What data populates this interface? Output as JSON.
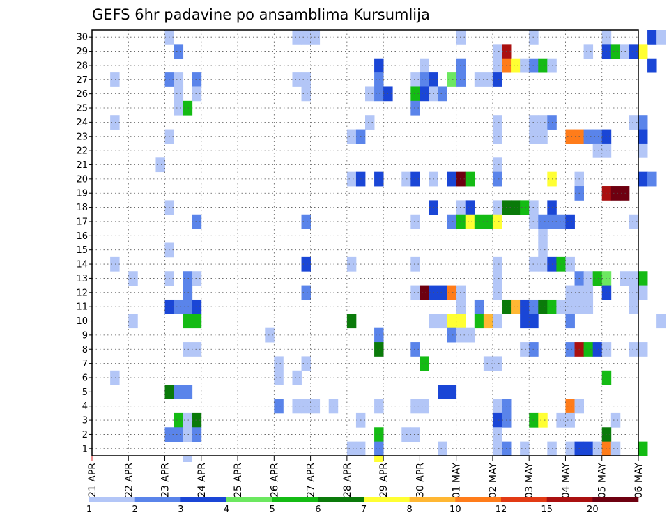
{
  "chart_data": {
    "type": "heatmap",
    "title": "GEFS 6hr padavine po ansamblima Kursumlija",
    "y_members": [
      1,
      2,
      3,
      4,
      5,
      6,
      7,
      8,
      9,
      10,
      11,
      12,
      13,
      14,
      15,
      16,
      17,
      18,
      19,
      20,
      21,
      22,
      23,
      24,
      25,
      26,
      27,
      28,
      29,
      30
    ],
    "x_days": [
      "21 APR",
      "22 APR",
      "23 APR",
      "24 APR",
      "25 APR",
      "26 APR",
      "27 APR",
      "28 APR",
      "29 APR",
      "30 APR",
      "01 MAY",
      "02 MAY",
      "03 MAY",
      "04 MAY",
      "05 MAY",
      "06 MAY"
    ],
    "steps_per_day": 4,
    "grid": true,
    "legend": {
      "position": "bottom",
      "labels": [
        "1",
        "2",
        "3",
        "4",
        "5",
        "6",
        "7",
        "8",
        "10",
        "12",
        "15",
        "20"
      ],
      "colors": [
        "#b3c6f7",
        "#5a84ea",
        "#1a46d6",
        "#6ce860",
        "#14bb14",
        "#0a7a0a",
        "#ffff33",
        "#ffb733",
        "#ff7c1a",
        "#e23a14",
        "#aa1010",
        "#6e0010"
      ]
    },
    "cells": [
      [
        30,
        2,
        1
      ],
      [
        30,
        5.5,
        1
      ],
      [
        30,
        5.75,
        1
      ],
      [
        30,
        6,
        1
      ],
      [
        30,
        10,
        1
      ],
      [
        30,
        12,
        1
      ],
      [
        30,
        14,
        1
      ],
      [
        30,
        15.25,
        3
      ],
      [
        30,
        15.5,
        1
      ],
      [
        29,
        2.25,
        2
      ],
      [
        29,
        11,
        1
      ],
      [
        29,
        11.25,
        15
      ],
      [
        29,
        13.5,
        1
      ],
      [
        29,
        14,
        3
      ],
      [
        29,
        14.25,
        5
      ],
      [
        29,
        14.5,
        1
      ],
      [
        29,
        14.75,
        3
      ],
      [
        29,
        15,
        7
      ],
      [
        28,
        7.75,
        3
      ],
      [
        28,
        9,
        1
      ],
      [
        28,
        10,
        2
      ],
      [
        28,
        11,
        1
      ],
      [
        28,
        11.25,
        10
      ],
      [
        28,
        11.5,
        7
      ],
      [
        28,
        11.75,
        1
      ],
      [
        28,
        12,
        2
      ],
      [
        28,
        12.25,
        5
      ],
      [
        28,
        12.5,
        1
      ],
      [
        28,
        15.25,
        3
      ],
      [
        27,
        0.5,
        1
      ],
      [
        27,
        2,
        2
      ],
      [
        27,
        2.25,
        1
      ],
      [
        27,
        2.75,
        2
      ],
      [
        27,
        5.5,
        1
      ],
      [
        27,
        5.75,
        1
      ],
      [
        27,
        7.75,
        2
      ],
      [
        27,
        8.75,
        1
      ],
      [
        27,
        9,
        2
      ],
      [
        27,
        9.25,
        3
      ],
      [
        27,
        9.75,
        4
      ],
      [
        27,
        10,
        2
      ],
      [
        27,
        10.5,
        1
      ],
      [
        27,
        10.75,
        1
      ],
      [
        27,
        11,
        3
      ],
      [
        26,
        2.25,
        1
      ],
      [
        26,
        2.75,
        1
      ],
      [
        26,
        5.75,
        1
      ],
      [
        26,
        7.5,
        1
      ],
      [
        26,
        7.75,
        2
      ],
      [
        26,
        8,
        3
      ],
      [
        26,
        8.75,
        5
      ],
      [
        26,
        9,
        3
      ],
      [
        26,
        9.25,
        1
      ],
      [
        26,
        9.5,
        2
      ],
      [
        25,
        2.25,
        1
      ],
      [
        25,
        2.5,
        5
      ],
      [
        25,
        8.75,
        2
      ],
      [
        24,
        0.5,
        1
      ],
      [
        24,
        7.5,
        1
      ],
      [
        24,
        11,
        1
      ],
      [
        24,
        12,
        1
      ],
      [
        24,
        12.25,
        1
      ],
      [
        24,
        12.5,
        2
      ],
      [
        24,
        14.75,
        1
      ],
      [
        24,
        15,
        2
      ],
      [
        23,
        2,
        1
      ],
      [
        23,
        7,
        1
      ],
      [
        23,
        7.25,
        2
      ],
      [
        23,
        11,
        1
      ],
      [
        23,
        12,
        1
      ],
      [
        23,
        12.25,
        1
      ],
      [
        23,
        13,
        10
      ],
      [
        23,
        13.25,
        10
      ],
      [
        23,
        13.5,
        2
      ],
      [
        23,
        13.75,
        2
      ],
      [
        23,
        14,
        3
      ],
      [
        23,
        15,
        3
      ],
      [
        22,
        13.75,
        1
      ],
      [
        22,
        14,
        1
      ],
      [
        22,
        15,
        1
      ],
      [
        21,
        1.75,
        1
      ],
      [
        21,
        11,
        1
      ],
      [
        20,
        7,
        1
      ],
      [
        20,
        7.25,
        3
      ],
      [
        20,
        7.75,
        3
      ],
      [
        20,
        8.5,
        1
      ],
      [
        20,
        8.75,
        3
      ],
      [
        20,
        9.25,
        1
      ],
      [
        20,
        9.75,
        3
      ],
      [
        20,
        10,
        20
      ],
      [
        20,
        10.25,
        5
      ],
      [
        20,
        11,
        2
      ],
      [
        20,
        12.5,
        7
      ],
      [
        20,
        13.25,
        1
      ],
      [
        20,
        15,
        3
      ],
      [
        20,
        15.25,
        2
      ],
      [
        19,
        13.25,
        2
      ],
      [
        19,
        14,
        15
      ],
      [
        19,
        14.25,
        20
      ],
      [
        19,
        14.5,
        20
      ],
      [
        18,
        2,
        1
      ],
      [
        18,
        9.25,
        3
      ],
      [
        18,
        10,
        1
      ],
      [
        18,
        10.25,
        3
      ],
      [
        18,
        11,
        1
      ],
      [
        18,
        11.25,
        6
      ],
      [
        18,
        11.5,
        6
      ],
      [
        18,
        11.75,
        5
      ],
      [
        18,
        12,
        1
      ],
      [
        18,
        12.5,
        3
      ],
      [
        17,
        2.75,
        2
      ],
      [
        17,
        5.75,
        2
      ],
      [
        17,
        8.75,
        1
      ],
      [
        17,
        9.75,
        2
      ],
      [
        17,
        10,
        5
      ],
      [
        17,
        10.25,
        7
      ],
      [
        17,
        10.5,
        5
      ],
      [
        17,
        10.75,
        5
      ],
      [
        17,
        11,
        7
      ],
      [
        17,
        12,
        1
      ],
      [
        17,
        12.25,
        2
      ],
      [
        17,
        12.5,
        2
      ],
      [
        17,
        12.75,
        2
      ],
      [
        17,
        13,
        3
      ],
      [
        17,
        14.75,
        1
      ],
      [
        16,
        12.25,
        1
      ],
      [
        15,
        2,
        1
      ],
      [
        15,
        12.25,
        1
      ],
      [
        14,
        0.5,
        1
      ],
      [
        14,
        5.75,
        3
      ],
      [
        14,
        7,
        1
      ],
      [
        14,
        8.75,
        1
      ],
      [
        14,
        11,
        1
      ],
      [
        14,
        12,
        1
      ],
      [
        14,
        12.25,
        1
      ],
      [
        14,
        12.5,
        3
      ],
      [
        14,
        12.75,
        5
      ],
      [
        14,
        13,
        1
      ],
      [
        13,
        1,
        1
      ],
      [
        13,
        2,
        1
      ],
      [
        13,
        2.5,
        2
      ],
      [
        13,
        2.75,
        1
      ],
      [
        13,
        11,
        1
      ],
      [
        13,
        13.25,
        2
      ],
      [
        13,
        13.5,
        1
      ],
      [
        13,
        13.75,
        5
      ],
      [
        13,
        14,
        4
      ],
      [
        13,
        14.5,
        1
      ],
      [
        13,
        14.75,
        1
      ],
      [
        13,
        15,
        5
      ],
      [
        12,
        2.5,
        2
      ],
      [
        12,
        5.75,
        2
      ],
      [
        12,
        8.75,
        1
      ],
      [
        12,
        9,
        20
      ],
      [
        12,
        9.25,
        3
      ],
      [
        12,
        9.5,
        3
      ],
      [
        12,
        9.75,
        10
      ],
      [
        12,
        10,
        1
      ],
      [
        12,
        11,
        1
      ],
      [
        12,
        13,
        1
      ],
      [
        12,
        13.25,
        1
      ],
      [
        12,
        13.5,
        1
      ],
      [
        12,
        14,
        3
      ],
      [
        12,
        14.75,
        1
      ],
      [
        12,
        15,
        1
      ],
      [
        11,
        2,
        3
      ],
      [
        11,
        2.25,
        2
      ],
      [
        11,
        2.5,
        2
      ],
      [
        11,
        2.75,
        3
      ],
      [
        11,
        10,
        1
      ],
      [
        11,
        10.5,
        2
      ],
      [
        11,
        11.25,
        6
      ],
      [
        11,
        11.5,
        8
      ],
      [
        11,
        11.75,
        3
      ],
      [
        11,
        12,
        2
      ],
      [
        11,
        12.25,
        6
      ],
      [
        11,
        12.5,
        5
      ],
      [
        11,
        12.75,
        1
      ],
      [
        11,
        13,
        1
      ],
      [
        11,
        13.25,
        1
      ],
      [
        11,
        13.5,
        1
      ],
      [
        11,
        14.75,
        1
      ],
      [
        10,
        1,
        1
      ],
      [
        10,
        2.5,
        5
      ],
      [
        10,
        2.75,
        5
      ],
      [
        10,
        7,
        6
      ],
      [
        10,
        9.25,
        1
      ],
      [
        10,
        9.5,
        1
      ],
      [
        10,
        9.75,
        7
      ],
      [
        10,
        10,
        7
      ],
      [
        10,
        10.5,
        5
      ],
      [
        10,
        10.75,
        8
      ],
      [
        10,
        11,
        1
      ],
      [
        10,
        11.75,
        3
      ],
      [
        10,
        12,
        3
      ],
      [
        10,
        13,
        2
      ],
      [
        10,
        15.5,
        1
      ],
      [
        9,
        4.75,
        1
      ],
      [
        9,
        7.75,
        2
      ],
      [
        9,
        9.75,
        2
      ],
      [
        9,
        10,
        1
      ],
      [
        9,
        10.25,
        1
      ],
      [
        8,
        2.5,
        1
      ],
      [
        8,
        2.75,
        1
      ],
      [
        8,
        7.75,
        6
      ],
      [
        8,
        8.75,
        2
      ],
      [
        8,
        11.75,
        1
      ],
      [
        8,
        12,
        2
      ],
      [
        8,
        13,
        2
      ],
      [
        8,
        13.25,
        15
      ],
      [
        8,
        13.5,
        5
      ],
      [
        8,
        13.75,
        3
      ],
      [
        8,
        14,
        1
      ],
      [
        8,
        14.75,
        1
      ],
      [
        8,
        15,
        1
      ],
      [
        7,
        5,
        1
      ],
      [
        7,
        5.75,
        1
      ],
      [
        7,
        9,
        5
      ],
      [
        7,
        10.75,
        1
      ],
      [
        7,
        11,
        1
      ],
      [
        6,
        0.5,
        1
      ],
      [
        6,
        5,
        1
      ],
      [
        6,
        5.5,
        1
      ],
      [
        6,
        14,
        5
      ],
      [
        5,
        2,
        6
      ],
      [
        5,
        2.25,
        2
      ],
      [
        5,
        2.5,
        2
      ],
      [
        5,
        9.5,
        3
      ],
      [
        5,
        9.75,
        3
      ],
      [
        4,
        5,
        2
      ],
      [
        4,
        5.5,
        1
      ],
      [
        4,
        5.75,
        1
      ],
      [
        4,
        6,
        1
      ],
      [
        4,
        6.5,
        1
      ],
      [
        4,
        7.75,
        1
      ],
      [
        4,
        8.75,
        1
      ],
      [
        4,
        9,
        1
      ],
      [
        4,
        11,
        1
      ],
      [
        4,
        11.25,
        2
      ],
      [
        4,
        13,
        10
      ],
      [
        4,
        13.25,
        1
      ],
      [
        3,
        2.25,
        5
      ],
      [
        3,
        2.5,
        1
      ],
      [
        3,
        2.75,
        6
      ],
      [
        3,
        7.25,
        1
      ],
      [
        3,
        11,
        3
      ],
      [
        3,
        11.25,
        2
      ],
      [
        3,
        12,
        5
      ],
      [
        3,
        12.25,
        7
      ],
      [
        3,
        12.75,
        1
      ],
      [
        3,
        13,
        1
      ],
      [
        3,
        14.25,
        1
      ],
      [
        2,
        2,
        2
      ],
      [
        2,
        2.25,
        2
      ],
      [
        2,
        2.5,
        1
      ],
      [
        2,
        2.75,
        2
      ],
      [
        2,
        7.75,
        5
      ],
      [
        2,
        8.5,
        1
      ],
      [
        2,
        8.75,
        1
      ],
      [
        2,
        11,
        1
      ],
      [
        2,
        14,
        6
      ],
      [
        1,
        7,
        1
      ],
      [
        1,
        7.25,
        1
      ],
      [
        1,
        7.75,
        2
      ],
      [
        1,
        9.5,
        1
      ],
      [
        1,
        11,
        1
      ],
      [
        1,
        11.25,
        2
      ],
      [
        1,
        11.75,
        1
      ],
      [
        1,
        12.5,
        1
      ],
      [
        1,
        13,
        1
      ],
      [
        1,
        13.25,
        3
      ],
      [
        1,
        13.5,
        3
      ],
      [
        1,
        13.75,
        1
      ],
      [
        1,
        14,
        10
      ],
      [
        1,
        14.25,
        1
      ],
      [
        1,
        15,
        5
      ]
    ],
    "below_axis_marks": [
      [
        2.5,
        1
      ],
      [
        7.75,
        7
      ]
    ]
  }
}
